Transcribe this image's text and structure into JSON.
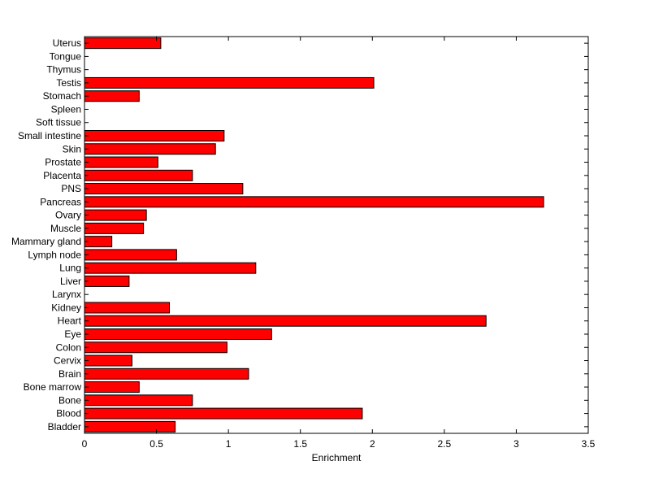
{
  "chart_data": {
    "type": "bar",
    "orientation": "horizontal",
    "categories": [
      "Bladder",
      "Blood",
      "Bone",
      "Bone marrow",
      "Brain",
      "Cervix",
      "Colon",
      "Eye",
      "Heart",
      "Kidney",
      "Larynx",
      "Liver",
      "Lung",
      "Lymph node",
      "Mammary gland",
      "Muscle",
      "Ovary",
      "Pancreas",
      "PNS",
      "Placenta",
      "Prostate",
      "Skin",
      "Small intestine",
      "Soft tissue",
      "Spleen",
      "Stomach",
      "Testis",
      "Thymus",
      "Tongue",
      "Uterus"
    ],
    "values": [
      0.63,
      1.93,
      0.75,
      0.38,
      1.14,
      0.33,
      0.99,
      1.3,
      2.79,
      0.59,
      0,
      0.31,
      1.19,
      0.64,
      0.19,
      0.41,
      0.43,
      3.19,
      1.1,
      0.75,
      0.51,
      0.91,
      0.97,
      0,
      0,
      0.38,
      2.01,
      0,
      0,
      0.53
    ],
    "title": "",
    "xlabel": "Enrichment",
    "ylabel": "",
    "xlim": [
      0,
      3.5
    ],
    "xticks": [
      "0",
      "0.5",
      "1",
      "1.5",
      "2",
      "2.5",
      "3",
      "3.5"
    ],
    "grid": false,
    "bar_color": "#ff0000",
    "bar_edge_color": "#000000"
  }
}
